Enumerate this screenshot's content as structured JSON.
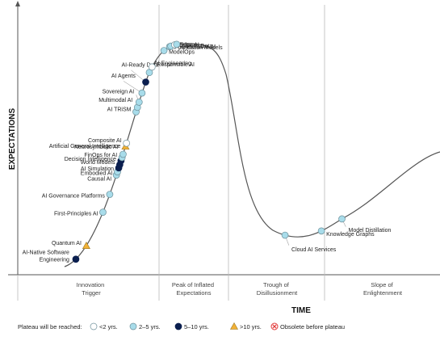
{
  "chart_data": {
    "type": "line",
    "xlabel": "TIME",
    "ylabel": "EXPECTATIONS",
    "phases": [
      {
        "lines": [
          "Innovation",
          "Trigger"
        ]
      },
      {
        "lines": [
          "Peak of Inflated",
          "Expectations"
        ]
      },
      {
        "lines": [
          "Trough of",
          "Disillusionment"
        ]
      },
      {
        "lines": [
          "Slope of",
          "Enlightenment"
        ]
      }
    ],
    "legend": {
      "title": "Plateau will be reached:",
      "entries": [
        {
          "key": "lt2",
          "label": "<2 yrs.",
          "color": "#ffffff",
          "shape": "circle"
        },
        {
          "key": "2to5",
          "label": "2–5 yrs.",
          "color": "#a8dcea",
          "shape": "circle"
        },
        {
          "key": "5to10",
          "label": "5–10 yrs.",
          "color": "#0b1f4f",
          "shape": "circle"
        },
        {
          "key": "gt10",
          "label": ">10 yrs.",
          "color": "#f2b135",
          "shape": "triangle"
        },
        {
          "key": "obsolete",
          "label": "Obsolete before plateau",
          "color": "#e23b3b",
          "shape": "x"
        }
      ]
    },
    "innovations": [
      {
        "label": "AI-Native Software Engineering",
        "t": 0.02,
        "plateau": "5to10"
      },
      {
        "label": "Quantum AI",
        "t": 0.045,
        "plateau": "gt10"
      },
      {
        "label": "First-Principles AI",
        "t": 0.1,
        "plateau": "2to5"
      },
      {
        "label": "AI Governance Platforms",
        "t": 0.128,
        "plateau": "2to5"
      },
      {
        "label": "Causal AI",
        "t": 0.158,
        "plateau": "2to5"
      },
      {
        "label": "Embodied AI",
        "t": 0.163,
        "plateau": "2to5"
      },
      {
        "label": "AI Simulation",
        "t": 0.169,
        "plateau": "5to10"
      },
      {
        "label": "World Models",
        "t": 0.174,
        "plateau": "5to10"
      },
      {
        "label": "Decision Intelligence",
        "t": 0.18,
        "plateau": "5to10"
      },
      {
        "label": "FinOps for AI",
        "t": 0.185,
        "plateau": "2to5"
      },
      {
        "label": "Neurosymbolic AI",
        "t": 0.19,
        "plateau": "2to5"
      },
      {
        "label": "Artificial General Intelligence",
        "t": 0.202,
        "plateau": "gt10"
      },
      {
        "label": "Composite AI",
        "t": 0.207,
        "plateau": "lt2"
      },
      {
        "label": "AI TRiSM",
        "t": 0.255,
        "plateau": "2to5"
      },
      {
        "label": "Multimodal AI",
        "t": 0.262,
        "plateau": "2to5"
      },
      {
        "label": "Sovereign AI",
        "t": 0.27,
        "plateau": "2to5"
      },
      {
        "label": "AI Agents",
        "t": 0.284,
        "plateau": "2to5"
      },
      {
        "label": "AI-Ready Data",
        "t": 0.301,
        "plateau": "5to10"
      },
      {
        "label": "AI Engineering",
        "t": 0.316,
        "plateau": "2to5"
      },
      {
        "label": "Responsible AI",
        "t": 0.325,
        "plateau": "lt2"
      },
      {
        "label": "ModelOps",
        "t": 0.355,
        "plateau": "2to5"
      },
      {
        "label": "Foundation Models",
        "t": 0.365,
        "plateau": "2to5"
      },
      {
        "label": "Synthetic Data",
        "t": 0.367,
        "plateau": "2to5"
      },
      {
        "label": "Edge AI",
        "t": 0.373,
        "plateau": "lt2"
      },
      {
        "label": "Generative AI",
        "t": 0.376,
        "plateau": "2to5"
      },
      {
        "label": "Cloud AI Services",
        "t": 0.735,
        "plateau": "2to5"
      },
      {
        "label": "Knowledge Graphs",
        "t": 0.79,
        "plateau": "2to5"
      },
      {
        "label": "Model Distillation",
        "t": 0.825,
        "plateau": "2to5"
      }
    ]
  }
}
